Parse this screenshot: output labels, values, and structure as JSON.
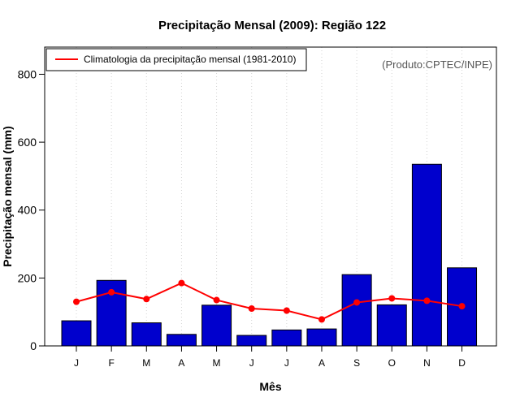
{
  "chart_data": {
    "type": "bar",
    "title": "Precipitação Mensal (2009): Região 122",
    "xlabel": "Mês",
    "ylabel": "Precipitação mensal (mm)",
    "ylim": [
      0,
      880
    ],
    "yticks": [
      0,
      200,
      400,
      600,
      800
    ],
    "categories": [
      "J",
      "F",
      "M",
      "A",
      "M",
      "J",
      "J",
      "A",
      "S",
      "O",
      "N",
      "D"
    ],
    "series": [
      {
        "name": "Precipitação mensal 2009",
        "type": "bar",
        "color": "#0000cd",
        "values": [
          74,
          193,
          68,
          34,
          120,
          31,
          47,
          50,
          210,
          121,
          535,
          230
        ]
      },
      {
        "name": "Climatologia da precipitação mensal (1981-2010)",
        "type": "line",
        "color": "#ff0000",
        "values": [
          130,
          158,
          138,
          185,
          135,
          110,
          104,
          78,
          128,
          140,
          133,
          117
        ]
      }
    ],
    "grid": "vertical-dotted",
    "legend": {
      "position": "top-left",
      "entries": [
        "Climatologia da precipitação mensal (1981-2010)"
      ]
    },
    "annotation": "(Produto:CPTEC/INPE)"
  }
}
